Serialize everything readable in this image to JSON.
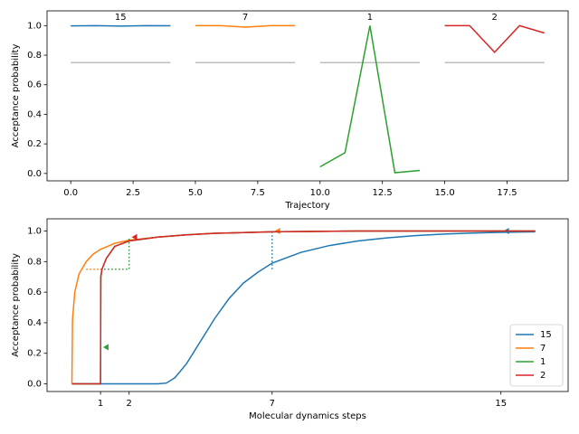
{
  "chart_data": [
    {
      "type": "line",
      "xlabel": "Trajectory",
      "ylabel": "Acceptance probability",
      "xlim": [
        -0.95,
        19.95
      ],
      "ylim": [
        -0.05,
        1.1
      ],
      "xticks": [
        {
          "value": 0,
          "label": "0.0"
        },
        {
          "value": 2.5,
          "label": "2.5"
        },
        {
          "value": 5,
          "label": "5.0"
        },
        {
          "value": 7.5,
          "label": "7.5"
        },
        {
          "value": 10,
          "label": "10.0"
        },
        {
          "value": 12.5,
          "label": "12.5"
        },
        {
          "value": 15,
          "label": "15.0"
        },
        {
          "value": 17.5,
          "label": "17.5"
        }
      ],
      "yticks": [
        {
          "value": 0,
          "label": "0.0"
        },
        {
          "value": 0.2,
          "label": "0.2"
        },
        {
          "value": 0.4,
          "label": "0.4"
        },
        {
          "value": 0.6,
          "label": "0.6"
        },
        {
          "value": 0.8,
          "label": "0.8"
        },
        {
          "value": 1,
          "label": "1.0"
        }
      ],
      "series_labels": true,
      "reference_line": {
        "value": 0.75,
        "color": "#bfbfbf"
      },
      "series": [
        {
          "name": "15",
          "color": "#1f77b4",
          "x": [
            0,
            1,
            2,
            3,
            4
          ],
          "values": [
            0.998,
            1.0,
            0.997,
            1.0,
            0.999
          ]
        },
        {
          "name": "7",
          "color": "#ff7f0e",
          "x": [
            5,
            6,
            7,
            8,
            9
          ],
          "values": [
            1.0,
            1.0,
            0.99,
            1.0,
            1.0
          ]
        },
        {
          "name": "1",
          "color": "#2ca02c",
          "x": [
            10,
            11,
            12,
            13,
            14
          ],
          "values": [
            0.045,
            0.14,
            1.0,
            0.005,
            0.02
          ]
        },
        {
          "name": "2",
          "color": "#d62728",
          "x": [
            15,
            16,
            17,
            18,
            19
          ],
          "values": [
            1.0,
            1.0,
            0.82,
            1.0,
            0.95
          ]
        }
      ]
    },
    {
      "type": "line",
      "xlabel": "Molecular dynamics steps",
      "ylabel": "Acceptance probability",
      "xlim": [
        -0.87,
        17.35
      ],
      "ylim": [
        -0.05,
        1.08
      ],
      "xticks": [
        1,
        2,
        7,
        15
      ],
      "yticks": [
        {
          "value": 0,
          "label": "0.0"
        },
        {
          "value": 0.2,
          "label": "0.2"
        },
        {
          "value": 0.4,
          "label": "0.4"
        },
        {
          "value": 0.6,
          "label": "0.6"
        },
        {
          "value": 0.8,
          "label": "0.8"
        },
        {
          "value": 1,
          "label": "1.0"
        }
      ],
      "legend": "lower right",
      "series": [
        {
          "name": "15",
          "color": "#1f77b4",
          "x": [
            0,
            1,
            2,
            3,
            3.3,
            3.6,
            4,
            4.5,
            5,
            5.5,
            6,
            6.5,
            7,
            8,
            9,
            10,
            11,
            12,
            13,
            14,
            15,
            16.2
          ],
          "values": [
            0,
            0,
            0,
            0,
            0.005,
            0.04,
            0.13,
            0.28,
            0.43,
            0.56,
            0.66,
            0.73,
            0.79,
            0.86,
            0.905,
            0.935,
            0.955,
            0.97,
            0.98,
            0.987,
            0.991,
            0.995
          ],
          "marker": {
            "x": 15.2,
            "y": 1.0
          },
          "guide": {
            "x": [
              7,
              7
            ],
            "y": [
              0.75,
              1.0
            ]
          }
        },
        {
          "name": "7",
          "color": "#ff7f0e",
          "x": [
            0,
            0.02,
            0.1,
            0.25,
            0.5,
            0.75,
            1,
            1.5,
            2,
            3,
            4,
            5,
            7,
            10,
            16.2
          ],
          "values": [
            0,
            0.42,
            0.6,
            0.72,
            0.8,
            0.85,
            0.88,
            0.92,
            0.94,
            0.96,
            0.975,
            0.985,
            0.995,
            1.0,
            1.0
          ],
          "marker": {
            "x": 7.2,
            "y": 1.0
          },
          "guide": {
            "x": [
              0.5,
              1
            ],
            "y": [
              0.75,
              0.75
            ]
          }
        },
        {
          "name": "1",
          "color": "#2ca02c",
          "x": [
            0,
            1,
            1.01,
            1.05,
            1.2,
            1.5,
            2,
            3,
            4,
            5,
            7,
            10,
            16.2
          ],
          "values": [
            0,
            0,
            0.7,
            0.75,
            0.82,
            0.9,
            0.935,
            0.96,
            0.975,
            0.985,
            0.995,
            1.0,
            1.0
          ],
          "marker": {
            "x": 1.2,
            "y": 0.24
          },
          "guide": {
            "x": [
              1,
              2,
              2
            ],
            "y": [
              0.75,
              0.75,
              0.95
            ]
          }
        },
        {
          "name": "2",
          "color": "#d62728",
          "x": [
            0,
            1,
            1.01,
            1.05,
            1.2,
            1.5,
            2,
            3,
            4,
            5,
            7,
            10,
            16.2
          ],
          "values": [
            0,
            0,
            0.7,
            0.75,
            0.82,
            0.9,
            0.935,
            0.96,
            0.975,
            0.985,
            0.995,
            1.0,
            1.0
          ],
          "marker": {
            "x": 2.2,
            "y": 0.96
          }
        }
      ]
    }
  ]
}
